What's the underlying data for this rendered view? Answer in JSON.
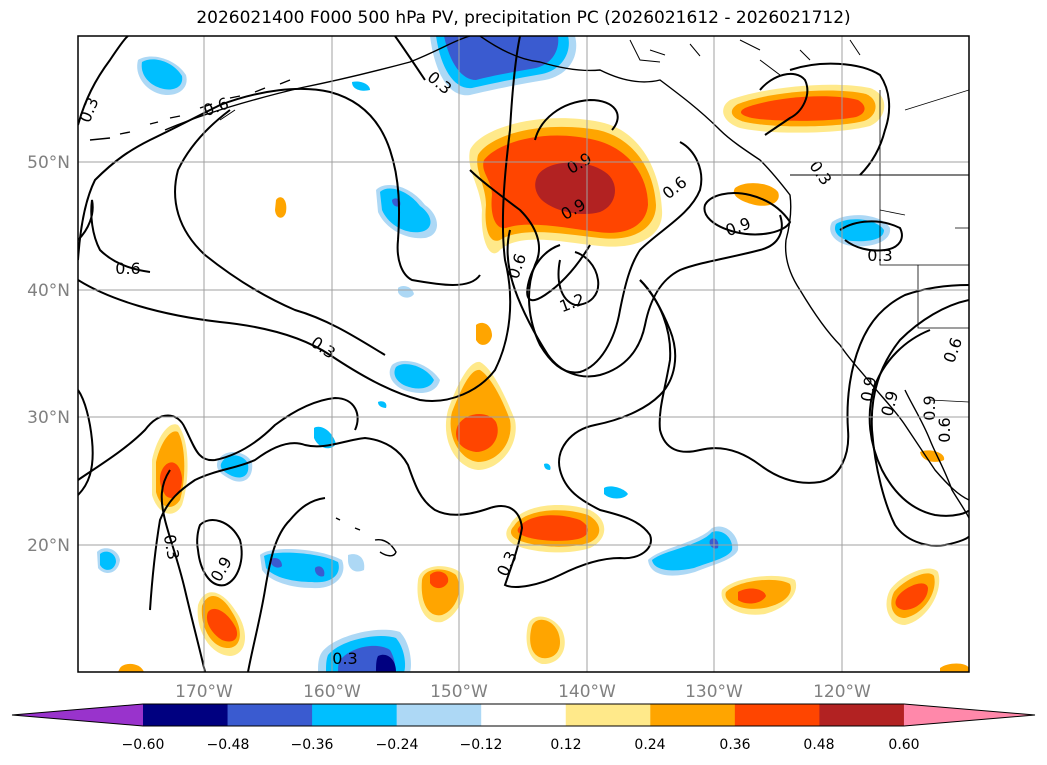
{
  "title": "2026021400 F000 500 hPa PV, precipitation PC (2026021612 - 2026021712)",
  "lat_labels": [
    "50°N",
    "40°N",
    "30°N",
    "20°N"
  ],
  "lon_labels": [
    "170°W",
    "160°W",
    "150°W",
    "140°W",
    "130°W",
    "120°W"
  ],
  "colorbar": {
    "tick_labels": [
      "−0.60",
      "−0.48",
      "−0.36",
      "−0.24",
      "−0.12",
      "0.12",
      "0.24",
      "0.36",
      "0.48",
      "0.60"
    ],
    "colors": [
      "#9933cc",
      "#000080",
      "#3a5bd0",
      "#00bfff",
      "#add8f5",
      "#ffffff",
      "#ffe98a",
      "#ffa500",
      "#ff4500",
      "#b22222",
      "#ff88aa"
    ]
  },
  "contour_labels": [
    "0.3",
    "0.3",
    "0.3",
    "0.3",
    "0.6",
    "0.6",
    "0.6",
    "0.6",
    "0.6",
    "0.9",
    "0.9",
    "0.9",
    "0.9",
    "0.9",
    "0.9",
    "1.2",
    "0.3",
    "0.3",
    "0.3",
    "0.3",
    "0.6",
    "0.9"
  ],
  "colors": {
    "frame": "#000000",
    "grid": "#a0a0a0",
    "tick_label": "#808080"
  }
}
